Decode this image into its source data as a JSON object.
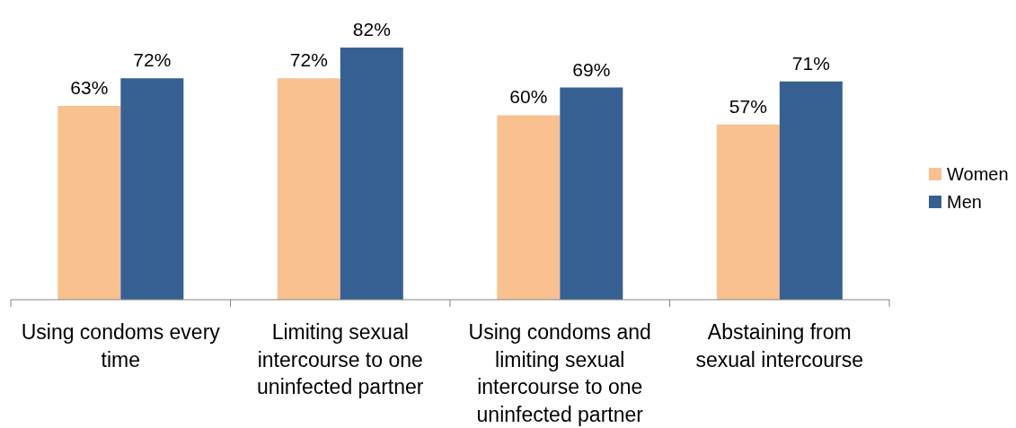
{
  "chart_data": {
    "type": "bar",
    "categories": [
      "Using condoms every time",
      "Limiting sexual intercourse to one uninfected partner",
      "Using condoms and limiting sexual intercourse to one uninfected partner",
      "Abstaining from sexual intercourse"
    ],
    "series": [
      {
        "name": "Women",
        "color": "#f9c090",
        "values": [
          63,
          72,
          60,
          57
        ],
        "value_labels": [
          "63%",
          "72%",
          "60%",
          "57%"
        ]
      },
      {
        "name": "Men",
        "color": "#366092",
        "values": [
          72,
          82,
          69,
          71
        ],
        "value_labels": [
          "72%",
          "82%",
          "69%",
          "71%"
        ]
      }
    ],
    "legend": "right"
  }
}
